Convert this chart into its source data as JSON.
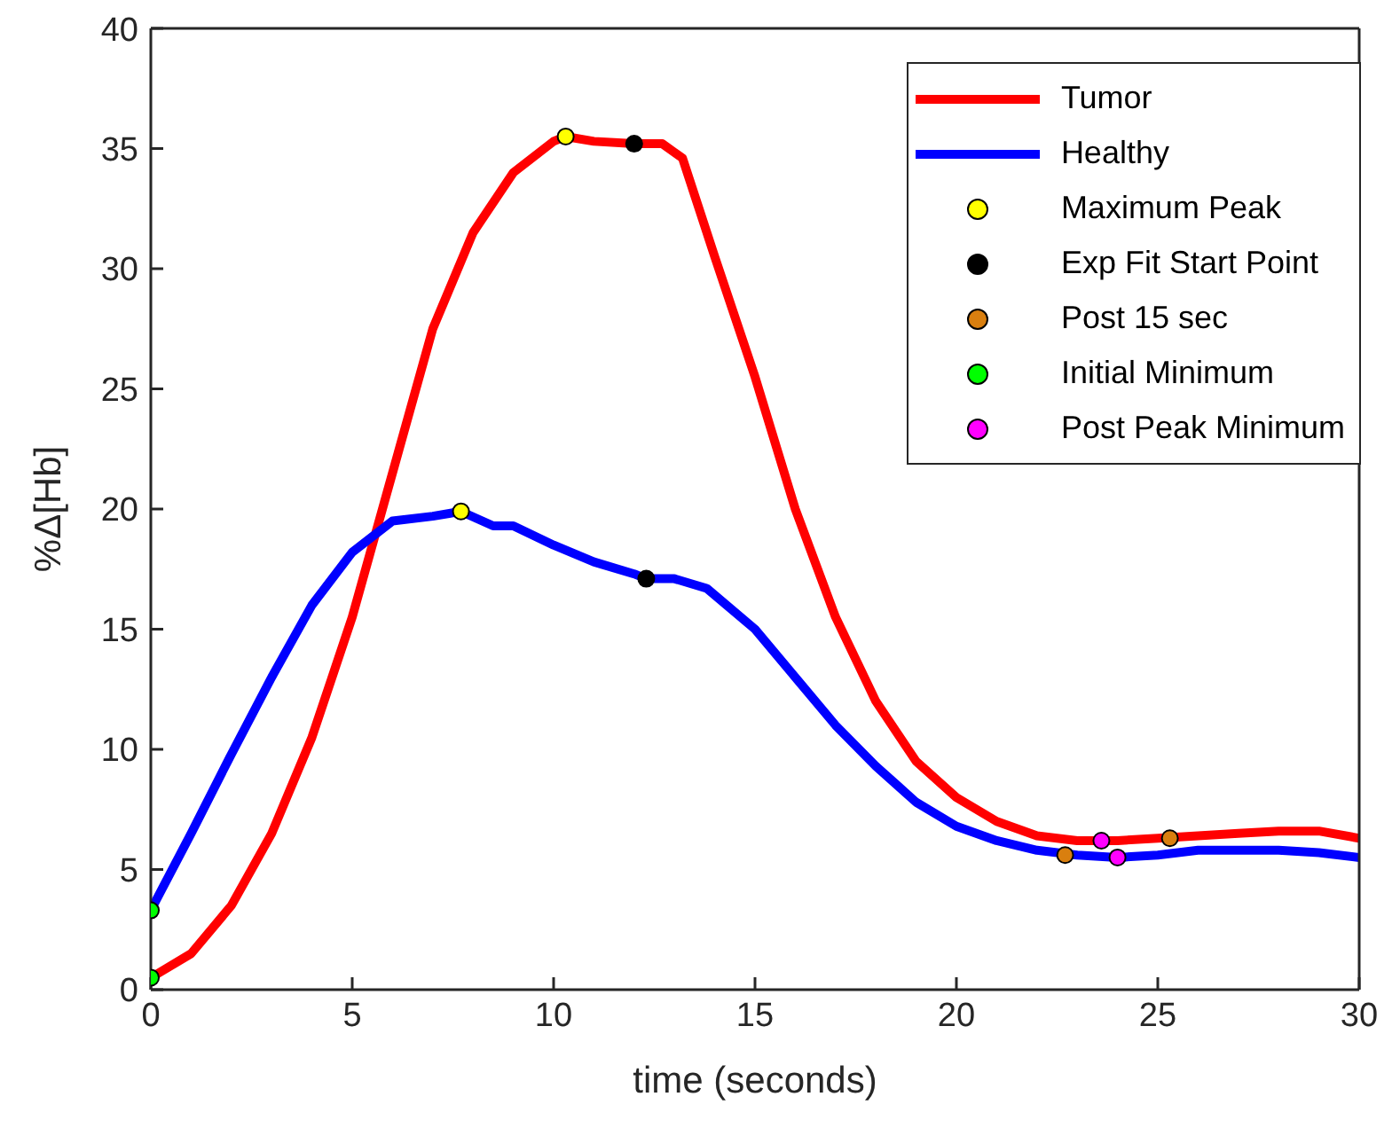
{
  "chart_data": {
    "type": "line",
    "xlabel": "time (seconds)",
    "ylabel": "%Δ[Hb]",
    "xlim": [
      0,
      30
    ],
    "ylim": [
      0,
      40
    ],
    "xticks": [
      0,
      5,
      10,
      15,
      20,
      25,
      30
    ],
    "yticks": [
      0,
      5,
      10,
      15,
      20,
      25,
      30,
      35,
      40
    ],
    "grid": false,
    "legend": "top right",
    "marker": "none",
    "line_style": "solid",
    "series": [
      {
        "name": "Tumor",
        "color": "#ff0000",
        "x": [
          0,
          1,
          2,
          3,
          4,
          5,
          6,
          7,
          8,
          9,
          10,
          10.3,
          11,
          12,
          12.7,
          13.2,
          14,
          15,
          16,
          17,
          18,
          19,
          20,
          21,
          22,
          23,
          24,
          25,
          26,
          27,
          28,
          29,
          30
        ],
        "values": [
          0.5,
          1.5,
          3.5,
          6.5,
          10.5,
          15.5,
          21.5,
          27.5,
          31.5,
          34,
          35.3,
          35.5,
          35.3,
          35.2,
          35.2,
          34.6,
          30.5,
          25.5,
          20,
          15.5,
          12,
          9.5,
          8,
          7,
          6.4,
          6.2,
          6.2,
          6.3,
          6.4,
          6.5,
          6.6,
          6.6,
          6.3
        ]
      },
      {
        "name": "Healthy",
        "color": "#0000ff",
        "x": [
          0,
          1,
          2,
          3,
          4,
          5,
          6,
          7,
          7.7,
          8.5,
          9,
          10,
          11,
          12,
          12.3,
          13,
          13.8,
          15,
          16,
          17,
          18,
          19,
          20,
          21,
          22,
          23,
          24,
          25,
          26,
          28,
          29,
          30
        ],
        "values": [
          3.3,
          6.5,
          9.8,
          13,
          16,
          18.2,
          19.5,
          19.7,
          19.9,
          19.3,
          19.3,
          18.5,
          17.8,
          17.3,
          17.1,
          17.1,
          16.7,
          15,
          13,
          11,
          9.3,
          7.8,
          6.8,
          6.2,
          5.8,
          5.6,
          5.5,
          5.6,
          5.8,
          5.8,
          5.7,
          5.5
        ]
      },
      {
        "name": "Maximum Peak",
        "type": "scatter",
        "marker": "circle",
        "color": "#ffff00",
        "x": [
          10.3,
          7.7
        ],
        "values": [
          35.5,
          19.9
        ]
      },
      {
        "name": "Exp Fit Start Point",
        "type": "scatter",
        "marker": "circle",
        "color": "#000000",
        "x": [
          12.0,
          12.3
        ],
        "values": [
          35.2,
          17.1
        ]
      },
      {
        "name": "Post 15 sec",
        "type": "scatter",
        "marker": "circle",
        "color": "#d97f0f",
        "x": [
          22.7,
          25.3
        ],
        "values": [
          5.6,
          6.3
        ]
      },
      {
        "name": "Initial Minimum",
        "type": "scatter",
        "marker": "circle",
        "color": "#00ff00",
        "x": [
          0,
          0
        ],
        "values": [
          0.5,
          3.3
        ]
      },
      {
        "name": "Post Peak Minimum",
        "type": "scatter",
        "marker": "circle",
        "color": "#ff00ff",
        "x": [
          23.6,
          24.0
        ],
        "values": [
          6.2,
          5.5
        ]
      }
    ]
  }
}
